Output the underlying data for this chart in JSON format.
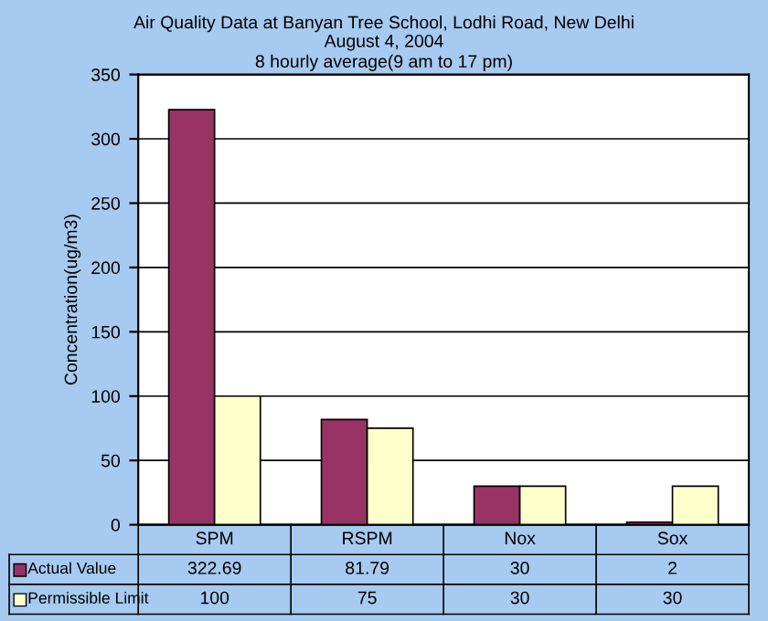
{
  "chart_data": {
    "type": "bar",
    "title": "Air Quality Data at Banyan Tree School, Lodhi Road, New Delhi",
    "subtitle": "August 4, 2004\n8 hourly average(9 am to 17 pm)",
    "ylabel": "Concentration(ug/m3)",
    "categories": [
      "SPM",
      "RSPM",
      "Nox",
      "Sox"
    ],
    "series": [
      {
        "name": "Actual Value",
        "color": "#993366",
        "values": [
          322.69,
          81.79,
          30,
          2
        ]
      },
      {
        "name": "Permissible Limit",
        "color": "#ffffcc",
        "values": [
          100,
          75,
          30,
          30
        ]
      }
    ],
    "ylim": [
      0,
      350
    ],
    "yticks": [
      0,
      50,
      100,
      150,
      200,
      250,
      300,
      350
    ],
    "grid": "y",
    "legend": "bottom",
    "data_labels": true
  }
}
